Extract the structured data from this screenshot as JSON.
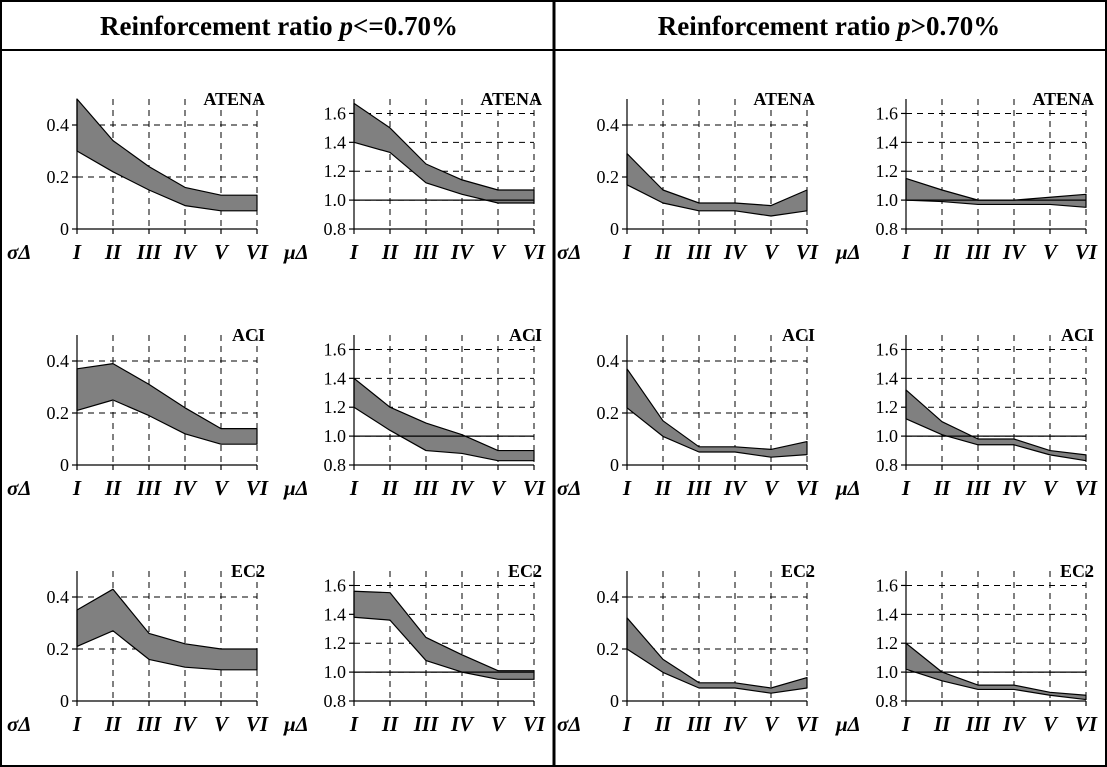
{
  "headers": {
    "left": {
      "prefix": "Reinforcement ratio ",
      "var": "p",
      "suffix": "<=0.70%"
    },
    "right": {
      "prefix": "Reinforcement ratio ",
      "var": "p",
      "suffix": ">0.70%"
    }
  },
  "chart_data": [
    {
      "type": "area",
      "title": "ATENA",
      "ylabel": "σΔ",
      "categories": [
        "I",
        "II",
        "III",
        "IV",
        "V",
        "VI"
      ],
      "ylim": [
        0,
        0.5
      ],
      "yticks": [
        "0",
        "0.2",
        "0.4"
      ],
      "ytick_values": [
        0,
        0.2,
        0.4
      ],
      "refline": null,
      "series": [
        {
          "name": "upper",
          "values": [
            0.5,
            0.34,
            0.24,
            0.16,
            0.13,
            0.13
          ]
        },
        {
          "name": "lower",
          "values": [
            0.3,
            0.22,
            0.15,
            0.09,
            0.07,
            0.07
          ]
        }
      ]
    },
    {
      "type": "area",
      "title": "ATENA",
      "ylabel": "μΔ",
      "categories": [
        "I",
        "II",
        "III",
        "IV",
        "V",
        "VI"
      ],
      "ylim": [
        0.8,
        1.7
      ],
      "yticks": [
        "0.8",
        "1.0",
        "1.2",
        "1.4",
        "1.6"
      ],
      "ytick_values": [
        0.8,
        1.0,
        1.2,
        1.4,
        1.6
      ],
      "refline": 1.0,
      "series": [
        {
          "name": "upper",
          "values": [
            1.67,
            1.5,
            1.25,
            1.14,
            1.07,
            1.07
          ]
        },
        {
          "name": "lower",
          "values": [
            1.4,
            1.33,
            1.12,
            1.04,
            0.98,
            0.98
          ]
        }
      ]
    },
    {
      "type": "area",
      "title": "ATENA",
      "ylabel": "σΔ",
      "categories": [
        "I",
        "II",
        "III",
        "IV",
        "V",
        "VI"
      ],
      "ylim": [
        0,
        0.5
      ],
      "yticks": [
        "0",
        "0.2",
        "0.4"
      ],
      "ytick_values": [
        0,
        0.2,
        0.4
      ],
      "refline": null,
      "series": [
        {
          "name": "upper",
          "values": [
            0.29,
            0.15,
            0.1,
            0.1,
            0.09,
            0.15
          ]
        },
        {
          "name": "lower",
          "values": [
            0.17,
            0.1,
            0.07,
            0.07,
            0.05,
            0.07
          ]
        }
      ]
    },
    {
      "type": "area",
      "title": "ATENA",
      "ylabel": "μΔ",
      "categories": [
        "I",
        "II",
        "III",
        "IV",
        "V",
        "VI"
      ],
      "ylim": [
        0.8,
        1.7
      ],
      "yticks": [
        "0.8",
        "1.0",
        "1.2",
        "1.4",
        "1.6"
      ],
      "ytick_values": [
        0.8,
        1.0,
        1.2,
        1.4,
        1.6
      ],
      "refline": 1.0,
      "series": [
        {
          "name": "upper",
          "values": [
            1.15,
            1.07,
            1.0,
            1.0,
            1.02,
            1.04
          ]
        },
        {
          "name": "lower",
          "values": [
            1.0,
            0.99,
            0.97,
            0.97,
            0.97,
            0.95
          ]
        }
      ]
    },
    {
      "type": "area",
      "title": "ACI",
      "ylabel": "σΔ",
      "categories": [
        "I",
        "II",
        "III",
        "IV",
        "V",
        "VI"
      ],
      "ylim": [
        0,
        0.5
      ],
      "yticks": [
        "0",
        "0.2",
        "0.4"
      ],
      "ytick_values": [
        0,
        0.2,
        0.4
      ],
      "refline": null,
      "series": [
        {
          "name": "upper",
          "values": [
            0.37,
            0.39,
            0.31,
            0.22,
            0.14,
            0.14
          ]
        },
        {
          "name": "lower",
          "values": [
            0.21,
            0.25,
            0.19,
            0.12,
            0.08,
            0.08
          ]
        }
      ]
    },
    {
      "type": "area",
      "title": "ACI",
      "ylabel": "μΔ",
      "categories": [
        "I",
        "II",
        "III",
        "IV",
        "V",
        "VI"
      ],
      "ylim": [
        0.8,
        1.7
      ],
      "yticks": [
        "0.8",
        "1.0",
        "1.2",
        "1.4",
        "1.6"
      ],
      "ytick_values": [
        0.8,
        1.0,
        1.2,
        1.4,
        1.6
      ],
      "refline": 1.0,
      "series": [
        {
          "name": "upper",
          "values": [
            1.4,
            1.2,
            1.09,
            1.01,
            0.9,
            0.9
          ]
        },
        {
          "name": "lower",
          "values": [
            1.2,
            1.04,
            0.9,
            0.88,
            0.83,
            0.83
          ]
        }
      ]
    },
    {
      "type": "area",
      "title": "ACI",
      "ylabel": "σΔ",
      "categories": [
        "I",
        "II",
        "III",
        "IV",
        "V",
        "VI"
      ],
      "ylim": [
        0,
        0.5
      ],
      "yticks": [
        "0",
        "0.2",
        "0.4"
      ],
      "ytick_values": [
        0,
        0.2,
        0.4
      ],
      "refline": null,
      "series": [
        {
          "name": "upper",
          "values": [
            0.37,
            0.17,
            0.07,
            0.07,
            0.06,
            0.09
          ]
        },
        {
          "name": "lower",
          "values": [
            0.22,
            0.11,
            0.05,
            0.05,
            0.03,
            0.04
          ]
        }
      ]
    },
    {
      "type": "area",
      "title": "ACI",
      "ylabel": "μΔ",
      "categories": [
        "I",
        "II",
        "III",
        "IV",
        "V",
        "VI"
      ],
      "ylim": [
        0.8,
        1.7
      ],
      "yticks": [
        "0.8",
        "1.0",
        "1.2",
        "1.4",
        "1.6"
      ],
      "ytick_values": [
        0.8,
        1.0,
        1.2,
        1.4,
        1.6
      ],
      "refline": 1.0,
      "series": [
        {
          "name": "upper",
          "values": [
            1.32,
            1.1,
            0.98,
            0.98,
            0.9,
            0.87
          ]
        },
        {
          "name": "lower",
          "values": [
            1.12,
            1.01,
            0.94,
            0.94,
            0.87,
            0.83
          ]
        }
      ]
    },
    {
      "type": "area",
      "title": "EC2",
      "ylabel": "σΔ",
      "categories": [
        "I",
        "II",
        "III",
        "IV",
        "V",
        "VI"
      ],
      "ylim": [
        0,
        0.5
      ],
      "yticks": [
        "0",
        "0.2",
        "0.4"
      ],
      "ytick_values": [
        0,
        0.2,
        0.4
      ],
      "refline": null,
      "series": [
        {
          "name": "upper",
          "values": [
            0.35,
            0.43,
            0.26,
            0.22,
            0.2,
            0.2
          ]
        },
        {
          "name": "lower",
          "values": [
            0.21,
            0.27,
            0.16,
            0.13,
            0.12,
            0.12
          ]
        }
      ]
    },
    {
      "type": "area",
      "title": "EC2",
      "ylabel": "μΔ",
      "categories": [
        "I",
        "II",
        "III",
        "IV",
        "V",
        "VI"
      ],
      "ylim": [
        0.8,
        1.7
      ],
      "yticks": [
        "0.8",
        "1.0",
        "1.2",
        "1.4",
        "1.6"
      ],
      "ytick_values": [
        0.8,
        1.0,
        1.2,
        1.4,
        1.6
      ],
      "refline": 1.0,
      "series": [
        {
          "name": "upper",
          "values": [
            1.56,
            1.55,
            1.24,
            1.12,
            1.01,
            1.01
          ]
        },
        {
          "name": "lower",
          "values": [
            1.38,
            1.36,
            1.08,
            1.0,
            0.95,
            0.95
          ]
        }
      ]
    },
    {
      "type": "area",
      "title": "EC2",
      "ylabel": "σΔ",
      "categories": [
        "I",
        "II",
        "III",
        "IV",
        "V",
        "VI"
      ],
      "ylim": [
        0,
        0.5
      ],
      "yticks": [
        "0",
        "0.2",
        "0.4"
      ],
      "ytick_values": [
        0,
        0.2,
        0.4
      ],
      "refline": null,
      "series": [
        {
          "name": "upper",
          "values": [
            0.32,
            0.16,
            0.07,
            0.07,
            0.05,
            0.09
          ]
        },
        {
          "name": "lower",
          "values": [
            0.2,
            0.11,
            0.05,
            0.05,
            0.03,
            0.05
          ]
        }
      ]
    },
    {
      "type": "area",
      "title": "EC2",
      "ylabel": "μΔ",
      "categories": [
        "I",
        "II",
        "III",
        "IV",
        "V",
        "VI"
      ],
      "ylim": [
        0.8,
        1.7
      ],
      "yticks": [
        "0.8",
        "1.0",
        "1.2",
        "1.4",
        "1.6"
      ],
      "ytick_values": [
        0.8,
        1.0,
        1.2,
        1.4,
        1.6
      ],
      "refline": 1.0,
      "series": [
        {
          "name": "upper",
          "values": [
            1.2,
            1.0,
            0.91,
            0.91,
            0.86,
            0.84
          ]
        },
        {
          "name": "lower",
          "values": [
            1.02,
            0.94,
            0.88,
            0.88,
            0.84,
            0.81
          ]
        }
      ]
    }
  ],
  "style": {
    "band_fill": "#808080",
    "line": "#000000",
    "grid": "#000000"
  }
}
